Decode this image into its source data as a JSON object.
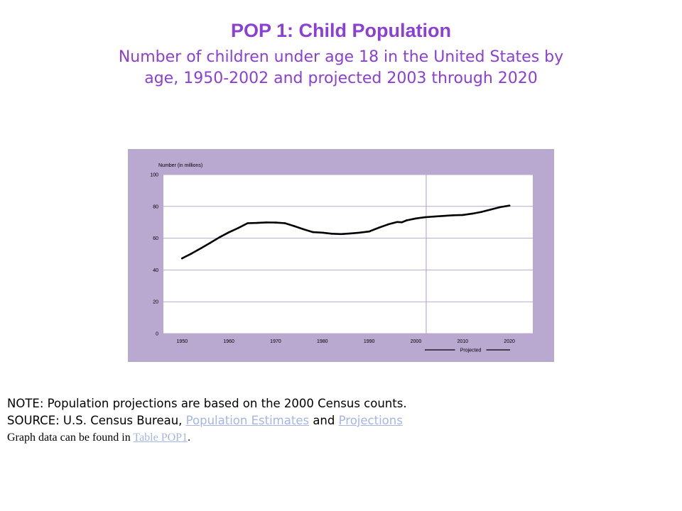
{
  "header": {
    "title": "POP 1: Child Population",
    "subtitle_line1": "Number of children under age 18 in the United States by",
    "subtitle_line2": "age, 1950-2002 and projected 2003 through 2020"
  },
  "colors": {
    "title": "#8a3fd6",
    "frame": "#b9a8cf",
    "plot_bg": "#ffffff",
    "grid": "#b9a8cf",
    "line": "#000000",
    "link": "#a5b6e6"
  },
  "chart_data": {
    "type": "line",
    "ylabel": "Number (in millions)",
    "xlim": [
      1946,
      2025
    ],
    "ylim": [
      0,
      100
    ],
    "y_ticks": [
      0,
      20,
      40,
      60,
      80,
      100
    ],
    "x_ticks": [
      1950,
      1960,
      1970,
      1980,
      1990,
      2000,
      2010,
      2020
    ],
    "grid": true,
    "projection_divider_x": 2002.2,
    "legend": {
      "label": "Projected",
      "placement": "bottom-right"
    },
    "series": [
      {
        "x": [
          1950,
          1952,
          1954,
          1956,
          1958,
          1960,
          1962,
          1964,
          1966,
          1968,
          1970,
          1972,
          1974,
          1976,
          1978,
          1980,
          1982,
          1984,
          1986,
          1988,
          1990,
          1992,
          1994,
          1996,
          1997,
          1998,
          2000,
          2002,
          2004,
          2006,
          2008,
          2010,
          2012,
          2014,
          2016,
          2018,
          2020
        ],
        "values": [
          47.3,
          50.3,
          53.6,
          57.0,
          60.6,
          63.7,
          66.4,
          69.4,
          69.6,
          69.9,
          69.8,
          69.4,
          67.6,
          65.6,
          63.8,
          63.5,
          62.8,
          62.6,
          63.0,
          63.5,
          64.2,
          66.5,
          68.6,
          70.2,
          70.0,
          71.2,
          72.4,
          73.2,
          73.6,
          74.0,
          74.4,
          74.6,
          75.4,
          76.5,
          78.0,
          79.5,
          80.5
        ]
      }
    ]
  },
  "footer": {
    "note": "NOTE: Population projections are based on the 2000 Census counts.",
    "source_prefix": "SOURCE: U.S. Census Bureau, ",
    "source_link1": "Population Estimates",
    "source_and": " and ",
    "source_link2": "Projections",
    "graph_prefix": "Graph data can be found in ",
    "graph_link": "Table POP1",
    "graph_suffix": "."
  }
}
